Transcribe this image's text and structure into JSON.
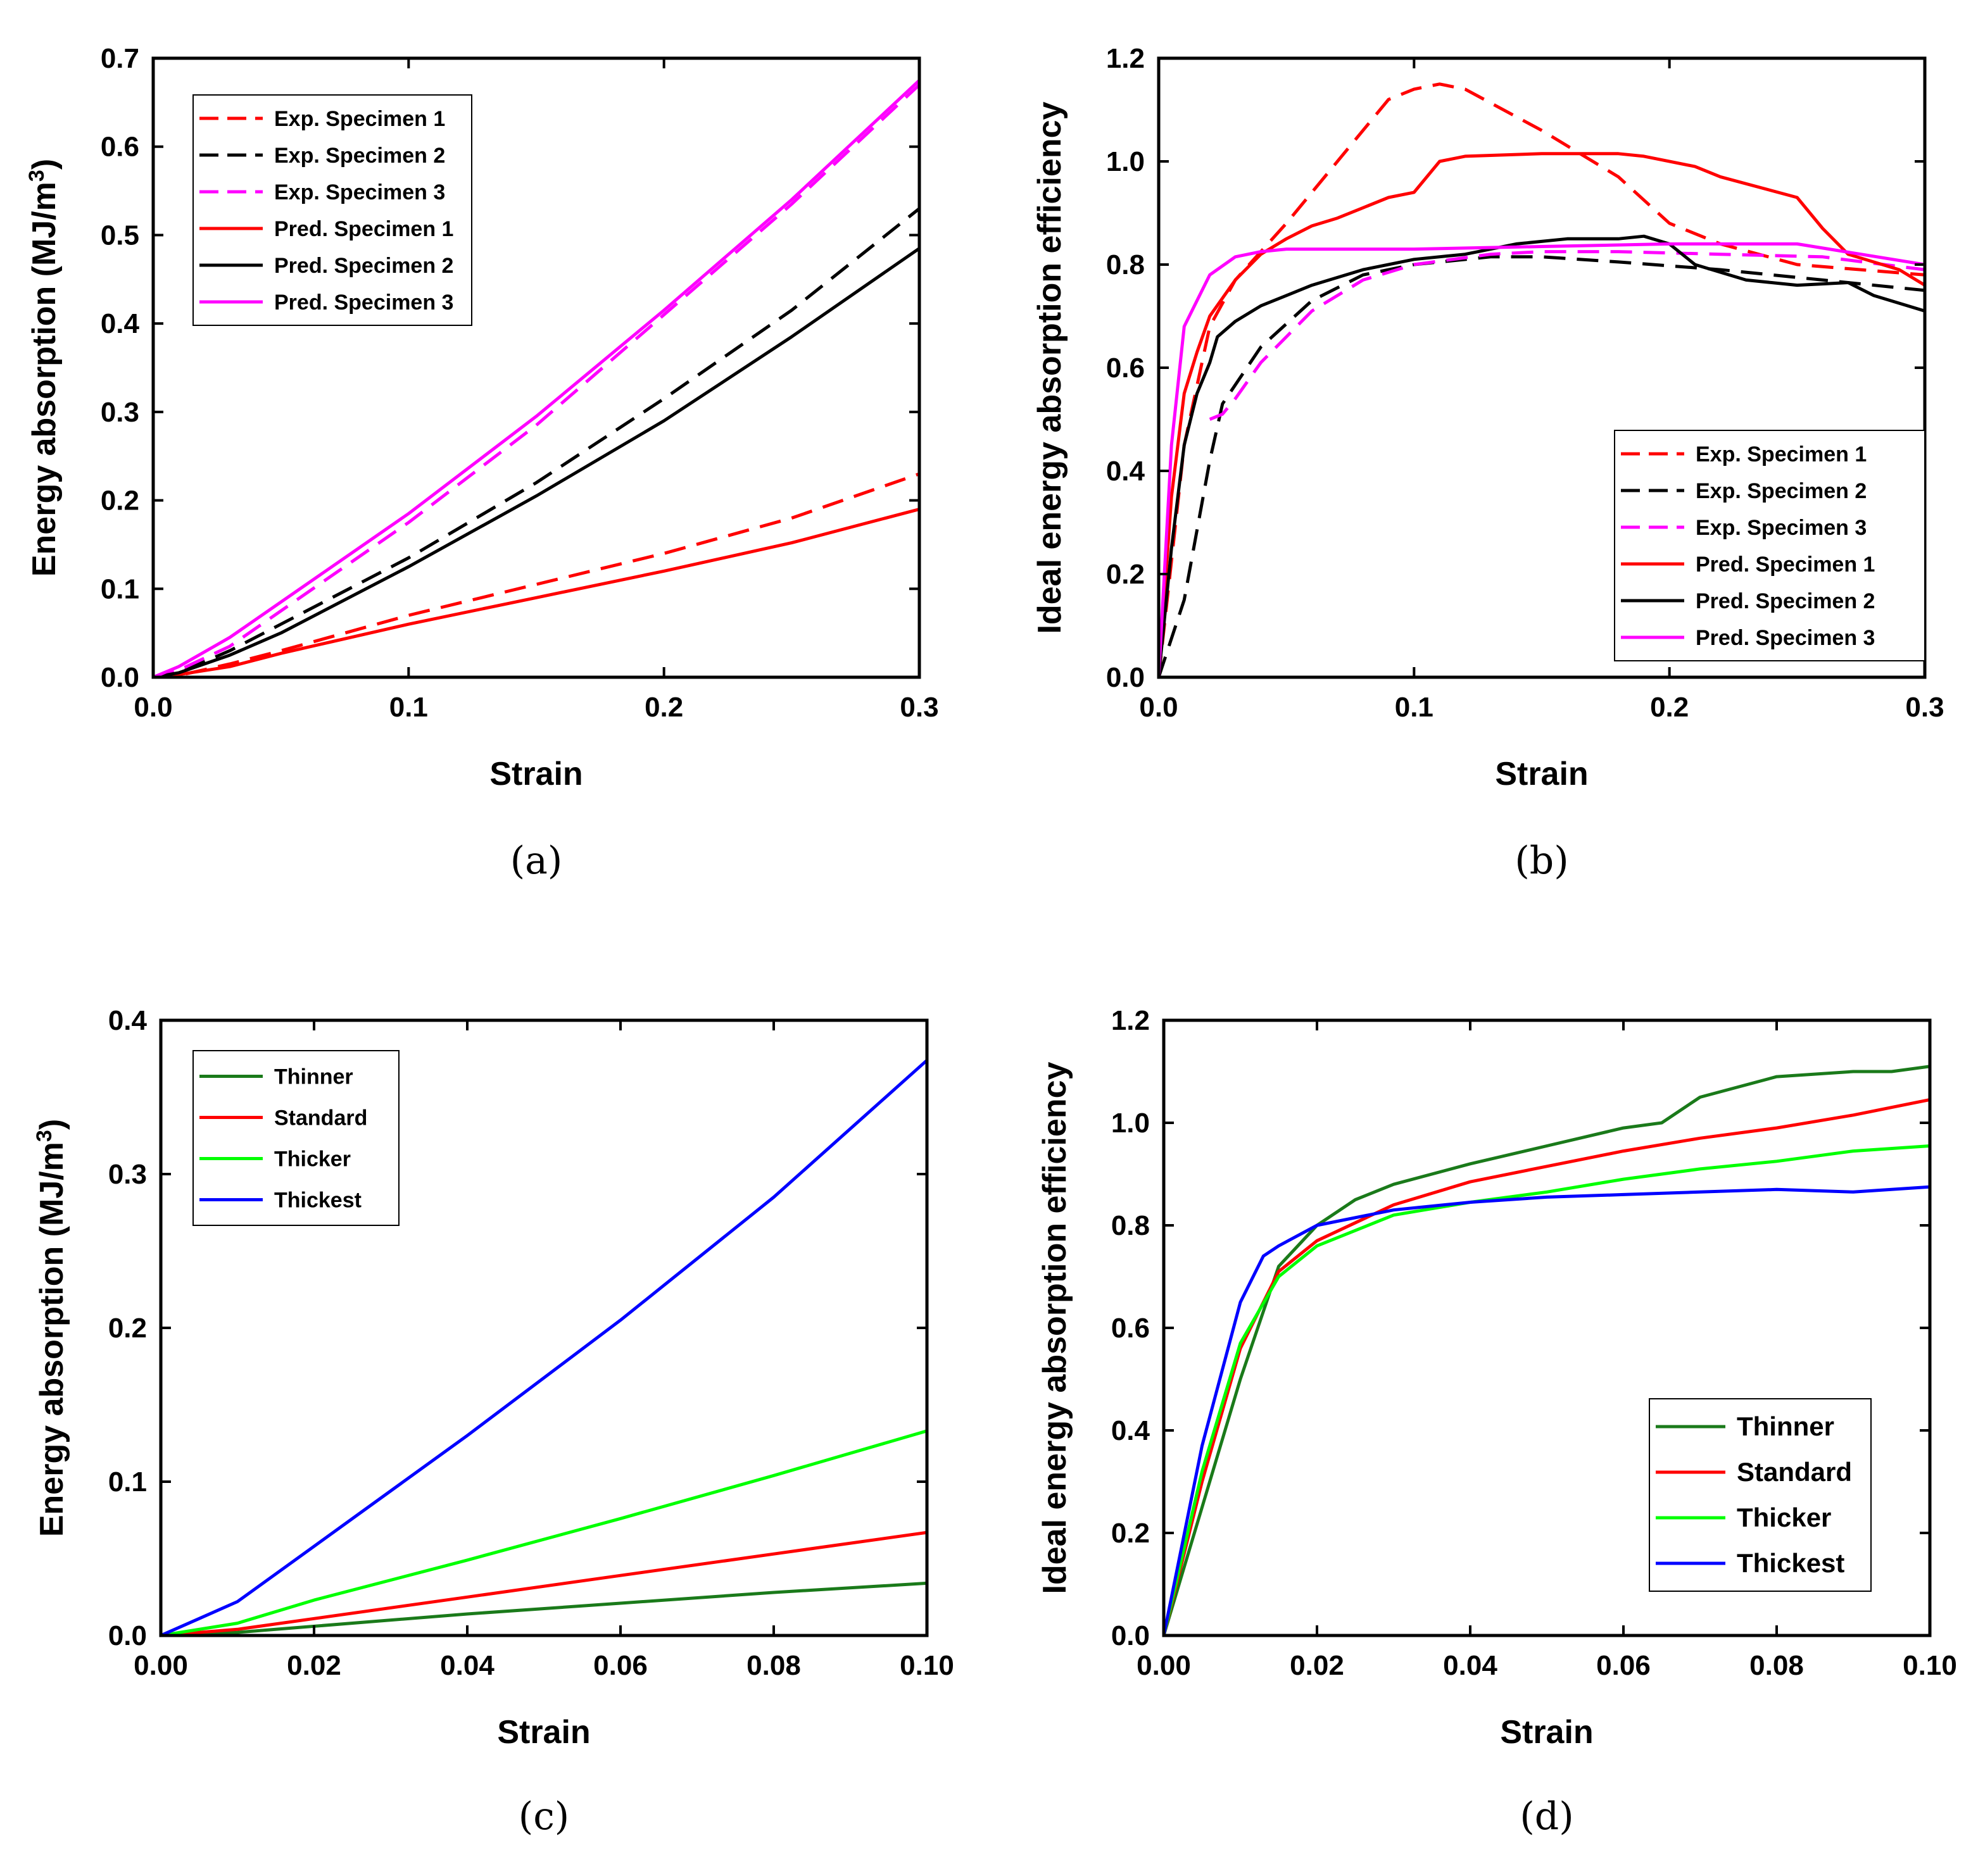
{
  "chart_data": [
    {
      "type": "line",
      "caption": "(a)",
      "title": "",
      "xlabel": "Strain",
      "ylabel": "Energy absorption (MJ/m",
      "ylabel_sup": "3",
      "ylabel_close": ")",
      "xlim": [
        0,
        0.3
      ],
      "ylim": [
        0,
        0.7
      ],
      "xticks": [
        0,
        0.1,
        0.2,
        0.3
      ],
      "xtick_labels": [
        "0.0",
        "0.1",
        "0.2",
        "0.3"
      ],
      "yticks": [
        0,
        0.1,
        0.2,
        0.3,
        0.4,
        0.5,
        0.6,
        0.7
      ],
      "ytick_labels": [
        "0.0",
        "0.1",
        "0.2",
        "0.3",
        "0.4",
        "0.5",
        "0.6",
        "0.7"
      ],
      "legend_position": "top-left",
      "series": [
        {
          "name": "Exp. Specimen 1",
          "color": "#ff0000",
          "dash": true,
          "x": [
            0,
            0.01,
            0.03,
            0.05,
            0.1,
            0.15,
            0.2,
            0.25,
            0.3
          ],
          "y": [
            0,
            0.002,
            0.015,
            0.03,
            0.07,
            0.105,
            0.14,
            0.18,
            0.23
          ]
        },
        {
          "name": "Exp. Specimen 2",
          "color": "#000000",
          "dash": true,
          "x": [
            0,
            0.01,
            0.03,
            0.05,
            0.1,
            0.15,
            0.2,
            0.25,
            0.3
          ],
          "y": [
            0,
            0.005,
            0.03,
            0.06,
            0.135,
            0.22,
            0.315,
            0.415,
            0.53
          ]
        },
        {
          "name": "Exp. Specimen 3",
          "color": "#ff00ff",
          "dash": true,
          "x": [
            0,
            0.01,
            0.03,
            0.05,
            0.1,
            0.15,
            0.2,
            0.25,
            0.3
          ],
          "y": [
            0,
            0.008,
            0.035,
            0.075,
            0.175,
            0.285,
            0.41,
            0.535,
            0.67
          ]
        },
        {
          "name": "Pred. Specimen 1",
          "color": "#ff0000",
          "dash": false,
          "x": [
            0,
            0.01,
            0.03,
            0.05,
            0.1,
            0.15,
            0.2,
            0.25,
            0.3
          ],
          "y": [
            0,
            0.003,
            0.012,
            0.027,
            0.06,
            0.09,
            0.12,
            0.152,
            0.19
          ]
        },
        {
          "name": "Pred. Specimen 2",
          "color": "#000000",
          "dash": false,
          "x": [
            0,
            0.01,
            0.03,
            0.05,
            0.1,
            0.15,
            0.2,
            0.25,
            0.3
          ],
          "y": [
            0,
            0.005,
            0.025,
            0.05,
            0.125,
            0.205,
            0.29,
            0.385,
            0.485
          ]
        },
        {
          "name": "Pred. Specimen 3",
          "color": "#ff00ff",
          "dash": false,
          "x": [
            0,
            0.01,
            0.03,
            0.05,
            0.1,
            0.15,
            0.2,
            0.25,
            0.3
          ],
          "y": [
            0,
            0.012,
            0.045,
            0.085,
            0.185,
            0.295,
            0.415,
            0.54,
            0.675
          ]
        }
      ]
    },
    {
      "type": "line",
      "caption": "(b)",
      "title": "",
      "xlabel": "Strain",
      "ylabel": "Ideal energy absorption efficiency",
      "xlim": [
        0,
        0.3
      ],
      "ylim": [
        0,
        1.2
      ],
      "xticks": [
        0,
        0.1,
        0.2,
        0.3
      ],
      "xtick_labels": [
        "0.0",
        "0.1",
        "0.2",
        "0.3"
      ],
      "yticks": [
        0,
        0.2,
        0.4,
        0.6,
        0.8,
        1.0,
        1.2
      ],
      "ytick_labels": [
        "0.0",
        "0.2",
        "0.4",
        "0.6",
        "0.8",
        "1.0",
        "1.2"
      ],
      "legend_position": "bottom-right",
      "series": [
        {
          "name": "Exp. Specimen 1",
          "color": "#ff0000",
          "dash": true,
          "x": [
            0,
            0.01,
            0.02,
            0.03,
            0.05,
            0.07,
            0.09,
            0.1,
            0.11,
            0.12,
            0.15,
            0.18,
            0.2,
            0.22,
            0.25,
            0.3
          ],
          "y": [
            0,
            0.45,
            0.68,
            0.77,
            0.88,
            1.0,
            1.12,
            1.14,
            1.15,
            1.14,
            1.06,
            0.97,
            0.88,
            0.84,
            0.8,
            0.78
          ]
        },
        {
          "name": "Exp. Specimen 2",
          "color": "#000000",
          "dash": true,
          "x": [
            0,
            0.01,
            0.02,
            0.025,
            0.04,
            0.06,
            0.08,
            0.1,
            0.13,
            0.15,
            0.18,
            0.22,
            0.26,
            0.3
          ],
          "y": [
            0,
            0.15,
            0.42,
            0.53,
            0.64,
            0.73,
            0.78,
            0.8,
            0.815,
            0.815,
            0.805,
            0.79,
            0.77,
            0.75
          ]
        },
        {
          "name": "Exp. Specimen 3",
          "color": "#ff00ff",
          "dash": true,
          "x": [
            0.02,
            0.025,
            0.03,
            0.04,
            0.06,
            0.08,
            0.1,
            0.13,
            0.15,
            0.18,
            0.22,
            0.26,
            0.3
          ],
          "y": [
            0.5,
            0.51,
            0.54,
            0.61,
            0.71,
            0.77,
            0.8,
            0.82,
            0.825,
            0.825,
            0.82,
            0.815,
            0.79
          ]
        },
        {
          "name": "Pred. Specimen 1",
          "color": "#ff0000",
          "dash": false,
          "x": [
            0,
            0.005,
            0.01,
            0.015,
            0.02,
            0.03,
            0.04,
            0.05,
            0.06,
            0.07,
            0.08,
            0.09,
            0.1,
            0.11,
            0.12,
            0.15,
            0.18,
            0.19,
            0.21,
            0.22,
            0.25,
            0.26,
            0.27,
            0.29,
            0.3
          ],
          "y": [
            0,
            0.35,
            0.55,
            0.63,
            0.7,
            0.77,
            0.82,
            0.85,
            0.875,
            0.89,
            0.91,
            0.93,
            0.94,
            1.0,
            1.01,
            1.015,
            1.015,
            1.01,
            0.99,
            0.97,
            0.93,
            0.87,
            0.82,
            0.79,
            0.76
          ]
        },
        {
          "name": "Pred. Specimen 2",
          "color": "#000000",
          "dash": false,
          "x": [
            0,
            0.005,
            0.01,
            0.015,
            0.02,
            0.023,
            0.03,
            0.04,
            0.05,
            0.06,
            0.08,
            0.1,
            0.12,
            0.14,
            0.16,
            0.18,
            0.19,
            0.2,
            0.21,
            0.23,
            0.24,
            0.25,
            0.27,
            0.28,
            0.3
          ],
          "y": [
            0,
            0.25,
            0.45,
            0.55,
            0.61,
            0.66,
            0.69,
            0.72,
            0.74,
            0.76,
            0.79,
            0.81,
            0.82,
            0.84,
            0.85,
            0.85,
            0.855,
            0.84,
            0.8,
            0.77,
            0.765,
            0.76,
            0.765,
            0.74,
            0.71
          ]
        },
        {
          "name": "Pred. Specimen 3",
          "color": "#ff00ff",
          "dash": false,
          "x": [
            0,
            0.005,
            0.01,
            0.015,
            0.02,
            0.03,
            0.04,
            0.05,
            0.06,
            0.08,
            0.1,
            0.15,
            0.2,
            0.25,
            0.3
          ],
          "y": [
            0,
            0.45,
            0.68,
            0.73,
            0.78,
            0.815,
            0.825,
            0.83,
            0.83,
            0.83,
            0.83,
            0.835,
            0.84,
            0.84,
            0.8
          ]
        }
      ]
    },
    {
      "type": "line",
      "caption": "(c)",
      "title": "",
      "xlabel": "Strain",
      "ylabel": "Energy absorption (MJ/m",
      "ylabel_sup": "3",
      "ylabel_close": ")",
      "xlim": [
        0,
        0.1
      ],
      "ylim": [
        0,
        0.4
      ],
      "xticks": [
        0,
        0.02,
        0.04,
        0.06,
        0.08,
        0.1
      ],
      "xtick_labels": [
        "0.00",
        "0.02",
        "0.04",
        "0.06",
        "0.08",
        "0.10"
      ],
      "yticks": [
        0,
        0.1,
        0.2,
        0.3,
        0.4
      ],
      "ytick_labels": [
        "0.0",
        "0.1",
        "0.2",
        "0.3",
        "0.4"
      ],
      "legend_position": "top-left",
      "series": [
        {
          "name": "Thinner",
          "color": "#1a7a1a",
          "dash": false,
          "x": [
            0,
            0.01,
            0.02,
            0.04,
            0.06,
            0.08,
            0.1
          ],
          "y": [
            0,
            0.002,
            0.006,
            0.014,
            0.021,
            0.028,
            0.034
          ]
        },
        {
          "name": "Standard",
          "color": "#ff0000",
          "dash": false,
          "x": [
            0,
            0.01,
            0.02,
            0.04,
            0.06,
            0.08,
            0.1
          ],
          "y": [
            0,
            0.004,
            0.011,
            0.025,
            0.039,
            0.053,
            0.067
          ]
        },
        {
          "name": "Thicker",
          "color": "#00ff00",
          "dash": false,
          "x": [
            0,
            0.01,
            0.02,
            0.04,
            0.06,
            0.08,
            0.1
          ],
          "y": [
            0,
            0.008,
            0.023,
            0.049,
            0.076,
            0.104,
            0.133
          ]
        },
        {
          "name": "Thickest",
          "color": "#0000ff",
          "dash": false,
          "x": [
            0,
            0.005,
            0.01,
            0.02,
            0.04,
            0.06,
            0.08,
            0.1
          ],
          "y": [
            0,
            0.011,
            0.022,
            0.058,
            0.13,
            0.205,
            0.285,
            0.374
          ]
        }
      ]
    },
    {
      "type": "line",
      "caption": "(d)",
      "title": "",
      "xlabel": "Strain",
      "ylabel": "Ideal energy absorption efficiency",
      "xlim": [
        0,
        0.1
      ],
      "ylim": [
        0,
        1.2
      ],
      "xticks": [
        0,
        0.02,
        0.04,
        0.06,
        0.08,
        0.1
      ],
      "xtick_labels": [
        "0.00",
        "0.02",
        "0.04",
        "0.06",
        "0.08",
        "0.10"
      ],
      "yticks": [
        0,
        0.2,
        0.4,
        0.6,
        0.8,
        1.0,
        1.2
      ],
      "ytick_labels": [
        "0.0",
        "0.2",
        "0.4",
        "0.6",
        "0.8",
        "1.0",
        "1.2"
      ],
      "legend_position": "bottom-right",
      "series": [
        {
          "name": "Thinner",
          "color": "#1a7a1a",
          "dash": false,
          "x": [
            0,
            0.005,
            0.01,
            0.015,
            0.02,
            0.025,
            0.03,
            0.04,
            0.05,
            0.06,
            0.065,
            0.07,
            0.08,
            0.09,
            0.095,
            0.1
          ],
          "y": [
            0,
            0.25,
            0.5,
            0.72,
            0.8,
            0.85,
            0.88,
            0.92,
            0.955,
            0.99,
            1.0,
            1.05,
            1.09,
            1.1,
            1.1,
            1.11
          ]
        },
        {
          "name": "Standard",
          "color": "#ff0000",
          "dash": false,
          "x": [
            0,
            0.005,
            0.01,
            0.015,
            0.02,
            0.03,
            0.04,
            0.05,
            0.06,
            0.07,
            0.08,
            0.09,
            0.1
          ],
          "y": [
            0,
            0.3,
            0.56,
            0.71,
            0.77,
            0.84,
            0.885,
            0.915,
            0.945,
            0.97,
            0.99,
            1.015,
            1.045
          ]
        },
        {
          "name": "Thicker",
          "color": "#00ff00",
          "dash": false,
          "x": [
            0,
            0.005,
            0.01,
            0.015,
            0.02,
            0.03,
            0.04,
            0.05,
            0.06,
            0.07,
            0.08,
            0.09,
            0.1
          ],
          "y": [
            0,
            0.32,
            0.57,
            0.7,
            0.76,
            0.82,
            0.845,
            0.865,
            0.89,
            0.91,
            0.925,
            0.945,
            0.955
          ]
        },
        {
          "name": "Thickest",
          "color": "#0000ff",
          "dash": false,
          "x": [
            0,
            0.005,
            0.01,
            0.013,
            0.015,
            0.02,
            0.03,
            0.04,
            0.05,
            0.06,
            0.07,
            0.08,
            0.09,
            0.1
          ],
          "y": [
            0,
            0.37,
            0.65,
            0.74,
            0.76,
            0.8,
            0.83,
            0.845,
            0.855,
            0.86,
            0.865,
            0.87,
            0.865,
            0.875
          ]
        }
      ]
    }
  ]
}
